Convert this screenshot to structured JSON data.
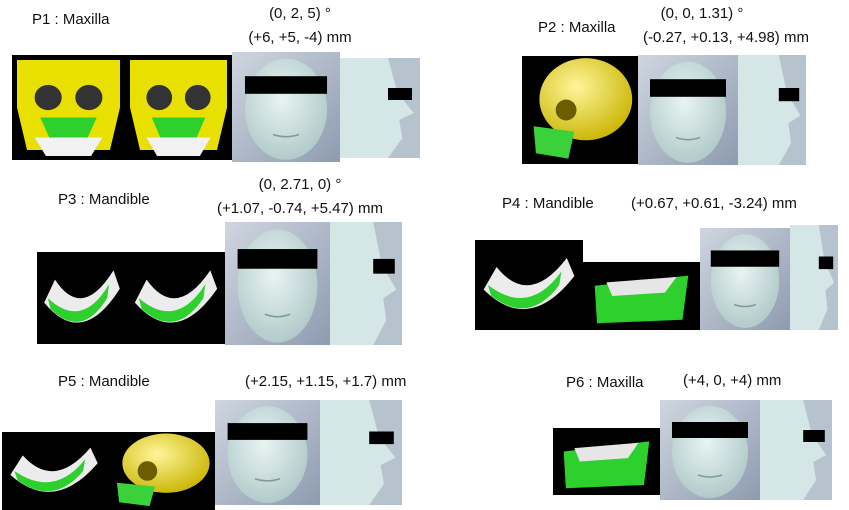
{
  "panels": [
    {
      "label": "P1 : Maxilla",
      "rotation": "(0, 2, 5) °",
      "translation": "(+6, +5, -4) mm"
    },
    {
      "label": "P2 : Maxilla",
      "rotation": "(0, 0, 1.31) °",
      "translation": "(-0.27, +0.13, +4.98) mm"
    },
    {
      "label": "P3 : Mandible",
      "rotation": "(0, 2.71, 0) °",
      "translation": "(+1.07, -0.74, +5.47) mm"
    },
    {
      "label": "P4 : Mandible",
      "translation": "(+0.67, +0.61, -3.24) mm"
    },
    {
      "label": "P5 : Mandible",
      "translation": "(+2.15, +1.15, +1.7) mm"
    },
    {
      "label": "P6 : Maxilla",
      "translation": "(+4, 0, +4) mm"
    }
  ]
}
